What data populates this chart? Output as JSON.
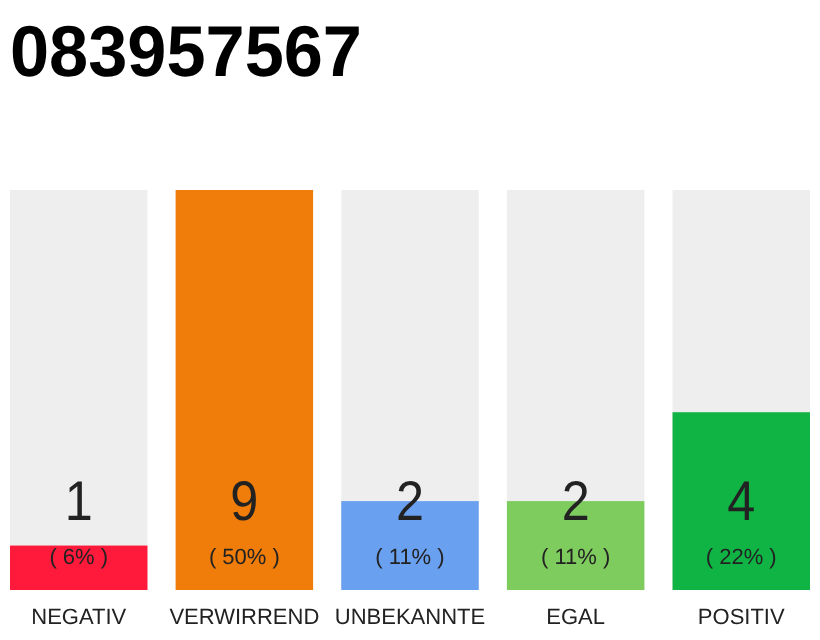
{
  "chart_data": {
    "type": "bar",
    "title": "083957567",
    "categories": [
      "NEGATIV",
      "VERWIRREND",
      "UNBEKANNTE",
      "EGAL",
      "POSITIV"
    ],
    "values": [
      1,
      9,
      2,
      2,
      4
    ],
    "colors": [
      "#ff1a3c",
      "#f07d0a",
      "#6aa0f0",
      "#7ecb5e",
      "#10b444"
    ],
    "data_labels": true,
    "annotations": [
      "( 6% )",
      "( 50% )",
      "( 11% )",
      "( 11% )",
      "( 22% )"
    ]
  }
}
